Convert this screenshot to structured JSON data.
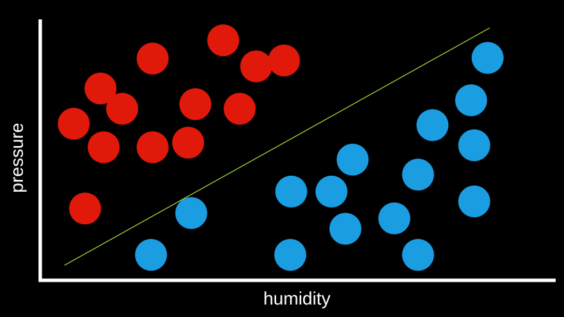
{
  "chart_data": {
    "type": "scatter",
    "xlabel": "humidity",
    "ylabel": "pressure",
    "grid": false,
    "legend": "none",
    "colors": {
      "background": "#000000",
      "axis": "#ffffff",
      "class_red": "#e0190a",
      "class_blue": "#1b9de2",
      "boundary": "#9acd32"
    },
    "series": [
      {
        "color": "#e0190a",
        "points": [
          [
            6.5,
            24.0
          ],
          [
            11.7,
            29.4
          ],
          [
            15.9,
            26.3
          ],
          [
            12.3,
            20.4
          ],
          [
            21.8,
            34.0
          ],
          [
            21.8,
            20.4
          ],
          [
            28.7,
            21.1
          ],
          [
            30.1,
            27.0
          ],
          [
            35.5,
            36.8
          ],
          [
            38.7,
            26.3
          ],
          [
            41.9,
            32.8
          ],
          [
            47.3,
            33.7
          ],
          [
            8.7,
            11.0
          ]
        ]
      },
      {
        "color": "#1b9de2",
        "points": [
          [
            86.8,
            34.1
          ],
          [
            83.6,
            27.6
          ],
          [
            76.1,
            23.8
          ],
          [
            84.2,
            20.7
          ],
          [
            60.6,
            18.5
          ],
          [
            73.3,
            16.2
          ],
          [
            48.7,
            13.6
          ],
          [
            56.5,
            13.6
          ],
          [
            29.3,
            10.3
          ],
          [
            59.2,
            7.9
          ],
          [
            68.7,
            9.5
          ],
          [
            84.2,
            12.1
          ],
          [
            21.5,
            3.9
          ],
          [
            48.5,
            3.9
          ],
          [
            73.3,
            3.9
          ]
        ]
      }
    ],
    "boundary_line": [
      [
        4.7,
        2.3
      ],
      [
        87.2,
        38.7
      ]
    ]
  }
}
